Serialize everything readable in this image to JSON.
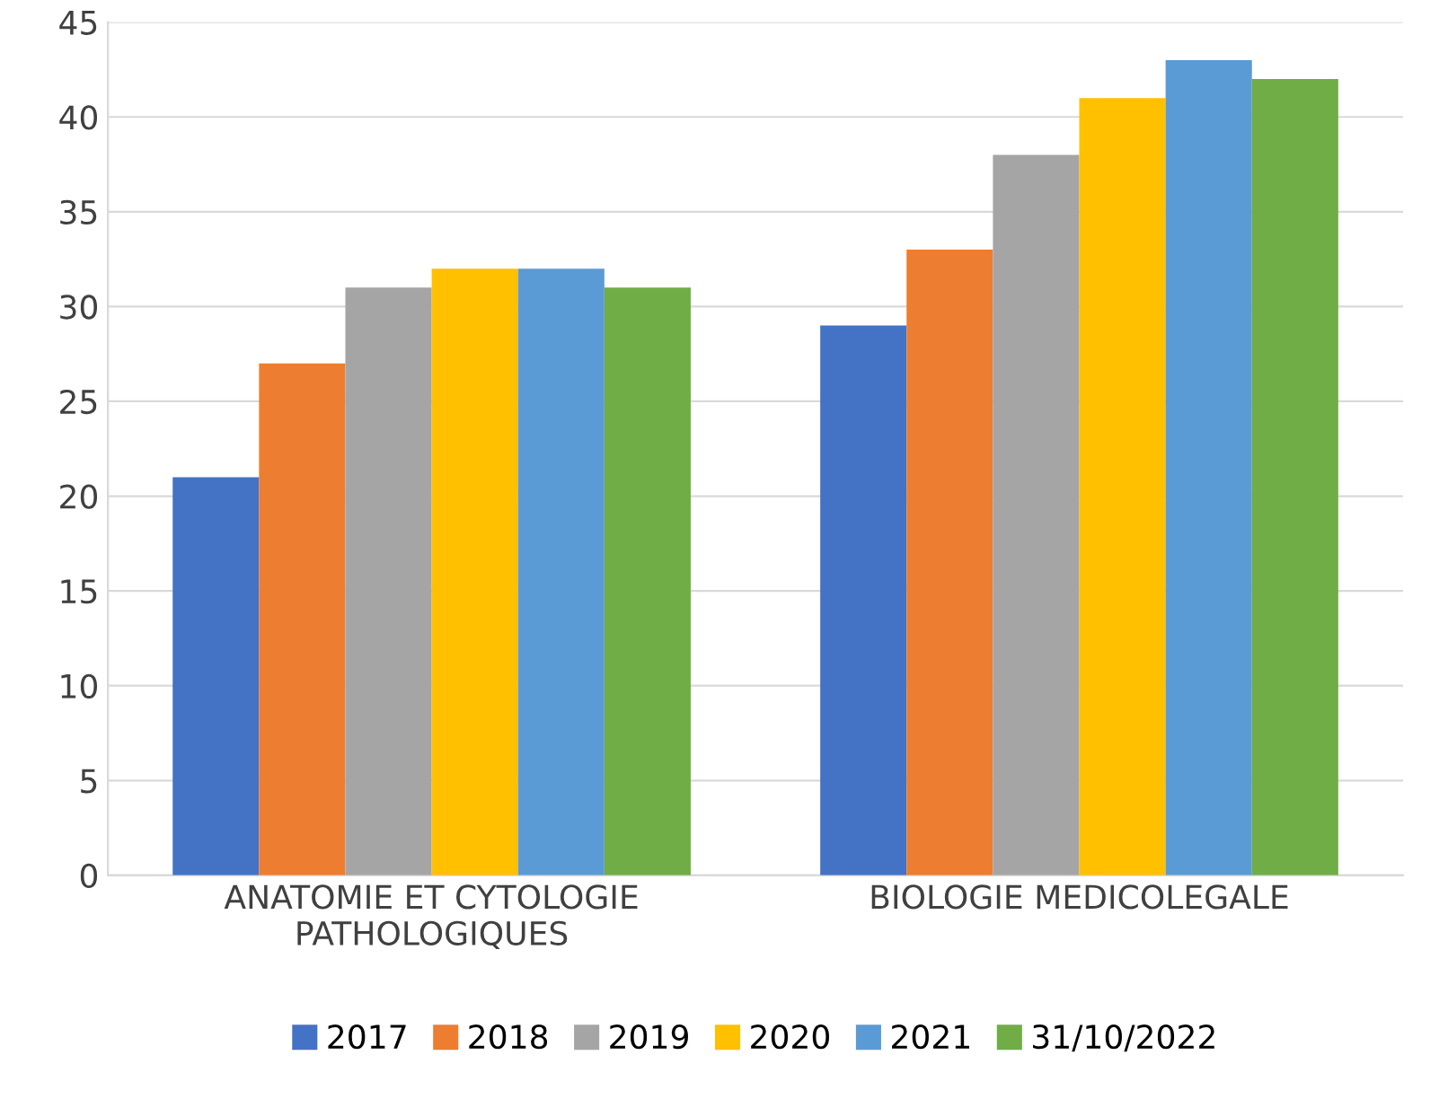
{
  "chart_data": {
    "type": "bar",
    "categories": [
      "ANATOMIE ET CYTOLOGIE\nPATHOLOGIQUES",
      "BIOLOGIE MEDICOLEGALE"
    ],
    "series": [
      {
        "name": "2017",
        "color": "#4472c4",
        "values": [
          21,
          29
        ]
      },
      {
        "name": "2018",
        "color": "#ed7d31",
        "values": [
          27,
          33
        ]
      },
      {
        "name": "2019",
        "color": "#a5a5a5",
        "values": [
          31,
          38
        ]
      },
      {
        "name": "2020",
        "color": "#ffc000",
        "values": [
          32,
          41
        ]
      },
      {
        "name": "2021",
        "color": "#5b9bd5",
        "values": [
          32,
          43
        ]
      },
      {
        "name": "31/10/2022",
        "color": "#70ad47",
        "values": [
          31,
          42
        ]
      }
    ],
    "ylim": [
      0,
      45
    ],
    "yticks": [
      0,
      5,
      10,
      15,
      20,
      25,
      30,
      35,
      40,
      45
    ],
    "grid": "y",
    "legend": "bottom"
  }
}
